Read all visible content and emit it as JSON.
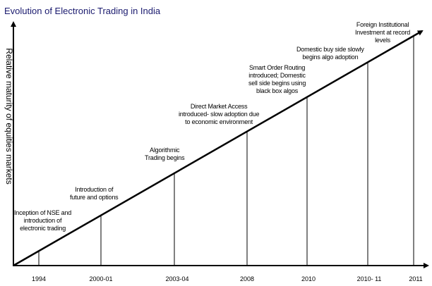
{
  "title": "Evolution of Electronic Trading in India",
  "y_axis_label": "Relative maturity of equities markets",
  "events": [
    {
      "year": "1994",
      "lines": [
        "Inception of NSE and",
        "introduction of",
        "electronic trading"
      ]
    },
    {
      "year": "2000-01",
      "lines": [
        "Introduction of",
        "future and options"
      ]
    },
    {
      "year": "2003-04",
      "lines": [
        "Algorithmic",
        "Trading begins"
      ]
    },
    {
      "year": "2008",
      "lines": [
        "Direct Market Access",
        "introduced- slow adoption due",
        "to economic environment"
      ]
    },
    {
      "year": "2010",
      "lines": [
        "Smart Order Routing",
        "introduced; Domestic",
        "sell side begins using",
        "black box algos"
      ]
    },
    {
      "year": "2010- 11",
      "lines": [
        "Domestic buy side slowly",
        "begins algo adoption"
      ]
    },
    {
      "year": "2011",
      "lines": [
        "Foreign Institutional",
        "Investment at record",
        "levels"
      ]
    }
  ]
}
